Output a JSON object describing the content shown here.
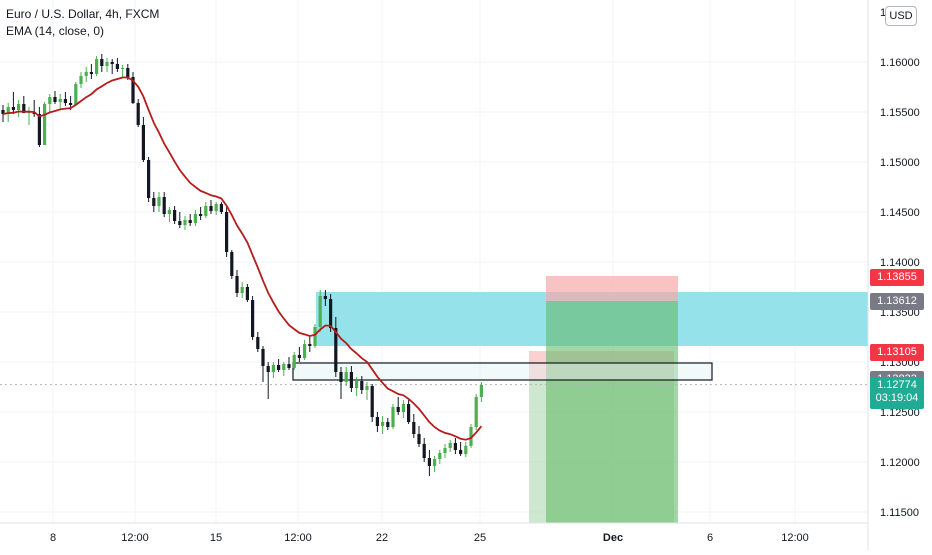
{
  "legend": {
    "symbol": "Euro / U.S. Dollar, 4h, FXCM",
    "indicator": "EMA (14, close, 0)"
  },
  "currency_button": "USD",
  "chart_data": {
    "type": "candlestick",
    "y_axis": {
      "ticks": [
        "1.16000",
        "1.15500",
        "1.15000",
        "1.14500",
        "1.14000",
        "1.13500",
        "1.13000",
        "1.12500",
        "1.12000",
        "1.11500"
      ],
      "partial_top_tick": "1.1",
      "ylim": [
        1.114,
        1.166
      ]
    },
    "x_axis": {
      "ticks": [
        "8",
        "12:00",
        "15",
        "12:00",
        "22",
        "25",
        "Dec",
        "6",
        "12:00"
      ]
    },
    "price_tags": [
      {
        "label": "1.13855",
        "value": 1.13855,
        "color": "#f23645"
      },
      {
        "label": "1.13612",
        "value": 1.13612,
        "color": "#787b86"
      },
      {
        "label": "1.13105",
        "value": 1.13105,
        "color": "#f23645"
      },
      {
        "label": "1.12833",
        "value": 1.12833,
        "color": "#787b86"
      },
      {
        "label": "1.12774",
        "value": 1.12774,
        "countdown": "03:19:04",
        "color": "#22ab94"
      }
    ],
    "zones": {
      "supply_zone": [
        1.1316,
        1.137
      ],
      "level_box": [
        1.1282,
        1.1299
      ],
      "trade_small": {
        "entry": 1.1283,
        "stop": 1.1311,
        "target": 1.114
      },
      "trade_large": {
        "entry": 1.1361,
        "stop": 1.1386,
        "target": 1.114
      }
    },
    "candles": [
      [
        1.1552,
        1.1557,
        1.154,
        1.1548
      ],
      [
        1.1548,
        1.1559,
        1.154,
        1.1555
      ],
      [
        1.1555,
        1.157,
        1.1548,
        1.1552
      ],
      [
        1.1552,
        1.1562,
        1.1545,
        1.1558
      ],
      [
        1.1558,
        1.1566,
        1.1551,
        1.1549
      ],
      [
        1.1549,
        1.1555,
        1.1537,
        1.155
      ],
      [
        1.155,
        1.1562,
        1.1545,
        1.1548
      ],
      [
        1.1548,
        1.1555,
        1.1515,
        1.1517
      ],
      [
        1.1517,
        1.156,
        1.1517,
        1.1558
      ],
      [
        1.1558,
        1.1568,
        1.155,
        1.1565
      ],
      [
        1.1565,
        1.1571,
        1.1558,
        1.156
      ],
      [
        1.156,
        1.1568,
        1.1552,
        1.1563
      ],
      [
        1.1563,
        1.157,
        1.1556,
        1.1559
      ],
      [
        1.1559,
        1.1566,
        1.1552,
        1.1557
      ],
      [
        1.1557,
        1.158,
        1.1557,
        1.1578
      ],
      [
        1.1578,
        1.159,
        1.1574,
        1.1586
      ],
      [
        1.1586,
        1.1595,
        1.158,
        1.159
      ],
      [
        1.159,
        1.1598,
        1.1583,
        1.1588
      ],
      [
        1.1588,
        1.1606,
        1.1586,
        1.1603
      ],
      [
        1.1603,
        1.1608,
        1.159,
        1.1596
      ],
      [
        1.1596,
        1.1604,
        1.159,
        1.16
      ],
      [
        1.16,
        1.1603,
        1.1588,
        1.1598
      ],
      [
        1.1598,
        1.1604,
        1.159,
        1.1593
      ],
      [
        1.1593,
        1.1597,
        1.1585,
        1.1594
      ],
      [
        1.1594,
        1.1598,
        1.1582,
        1.1585
      ],
      [
        1.1585,
        1.159,
        1.1558,
        1.1559
      ],
      [
        1.1559,
        1.1563,
        1.1535,
        1.1537
      ],
      [
        1.1537,
        1.1545,
        1.15,
        1.1502
      ],
      [
        1.1502,
        1.1505,
        1.146,
        1.1464
      ],
      [
        1.1464,
        1.147,
        1.145,
        1.1456
      ],
      [
        1.1456,
        1.147,
        1.145,
        1.1465
      ],
      [
        1.1465,
        1.147,
        1.1445,
        1.1448
      ],
      [
        1.1448,
        1.1455,
        1.144,
        1.1452
      ],
      [
        1.1452,
        1.1456,
        1.1438,
        1.1441
      ],
      [
        1.1441,
        1.145,
        1.1434,
        1.1437
      ],
      [
        1.1437,
        1.1446,
        1.1432,
        1.1442
      ],
      [
        1.1442,
        1.1448,
        1.1436,
        1.1439
      ],
      [
        1.1439,
        1.1452,
        1.1436,
        1.1448
      ],
      [
        1.1448,
        1.1455,
        1.1442,
        1.1446
      ],
      [
        1.1446,
        1.146,
        1.1444,
        1.1456
      ],
      [
        1.1456,
        1.1462,
        1.1448,
        1.1451
      ],
      [
        1.1451,
        1.146,
        1.1447,
        1.1458
      ],
      [
        1.1458,
        1.146,
        1.1448,
        1.145
      ],
      [
        1.145,
        1.1455,
        1.1405,
        1.141
      ],
      [
        1.141,
        1.1412,
        1.1383,
        1.1386
      ],
      [
        1.1386,
        1.1392,
        1.1365,
        1.1369
      ],
      [
        1.1369,
        1.138,
        1.1364,
        1.1375
      ],
      [
        1.1375,
        1.1378,
        1.136,
        1.1362
      ],
      [
        1.1362,
        1.1366,
        1.1322,
        1.1325
      ],
      [
        1.1325,
        1.133,
        1.131,
        1.1313
      ],
      [
        1.1313,
        1.1316,
        1.128,
        1.1296
      ],
      [
        1.1296,
        1.13,
        1.1263,
        1.129
      ],
      [
        1.129,
        1.13,
        1.1284,
        1.1297
      ],
      [
        1.1297,
        1.1303,
        1.129,
        1.1292
      ],
      [
        1.1292,
        1.13,
        1.1286,
        1.1298
      ],
      [
        1.1298,
        1.1305,
        1.1292,
        1.1294
      ],
      [
        1.1294,
        1.131,
        1.1292,
        1.1307
      ],
      [
        1.1307,
        1.1315,
        1.13,
        1.1304
      ],
      [
        1.1304,
        1.1322,
        1.1302,
        1.1318
      ],
      [
        1.1318,
        1.1326,
        1.131,
        1.1316
      ],
      [
        1.1316,
        1.1338,
        1.1314,
        1.1335
      ],
      [
        1.1335,
        1.1372,
        1.133,
        1.1366
      ],
      [
        1.1366,
        1.1372,
        1.1356,
        1.1363
      ],
      [
        1.1363,
        1.1368,
        1.133,
        1.1334
      ],
      [
        1.1334,
        1.1345,
        1.1285,
        1.129
      ],
      [
        1.129,
        1.1295,
        1.1263,
        1.128
      ],
      [
        1.128,
        1.1295,
        1.1276,
        1.129
      ],
      [
        1.129,
        1.1296,
        1.127,
        1.1274
      ],
      [
        1.1274,
        1.1285,
        1.1266,
        1.1281
      ],
      [
        1.1281,
        1.1286,
        1.1268,
        1.1272
      ],
      [
        1.1272,
        1.128,
        1.1262,
        1.1276
      ],
      [
        1.1276,
        1.1278,
        1.124,
        1.1245
      ],
      [
        1.1245,
        1.125,
        1.123,
        1.1236
      ],
      [
        1.1236,
        1.1246,
        1.1228,
        1.124
      ],
      [
        1.124,
        1.1244,
        1.1232,
        1.1235
      ],
      [
        1.1235,
        1.1258,
        1.1233,
        1.1255
      ],
      [
        1.1255,
        1.1265,
        1.1247,
        1.125
      ],
      [
        1.125,
        1.1262,
        1.1244,
        1.1258
      ],
      [
        1.1258,
        1.1262,
        1.1238,
        1.124
      ],
      [
        1.124,
        1.1248,
        1.1224,
        1.1228
      ],
      [
        1.1228,
        1.1236,
        1.1215,
        1.1218
      ],
      [
        1.1218,
        1.1224,
        1.12,
        1.1204
      ],
      [
        1.1204,
        1.1212,
        1.1186,
        1.1196
      ],
      [
        1.1196,
        1.1206,
        1.119,
        1.1203
      ],
      [
        1.1203,
        1.1212,
        1.1198,
        1.1209
      ],
      [
        1.1209,
        1.1218,
        1.1204,
        1.1214
      ],
      [
        1.1214,
        1.1222,
        1.121,
        1.1219
      ],
      [
        1.1219,
        1.1224,
        1.1208,
        1.1212
      ],
      [
        1.1212,
        1.122,
        1.1206,
        1.1208
      ],
      [
        1.1208,
        1.122,
        1.1205,
        1.1216
      ],
      [
        1.1216,
        1.1238,
        1.1214,
        1.1235
      ],
      [
        1.1235,
        1.1268,
        1.1232,
        1.1265
      ],
      [
        1.1265,
        1.128,
        1.126,
        1.1277
      ]
    ],
    "ema_period": 14
  }
}
